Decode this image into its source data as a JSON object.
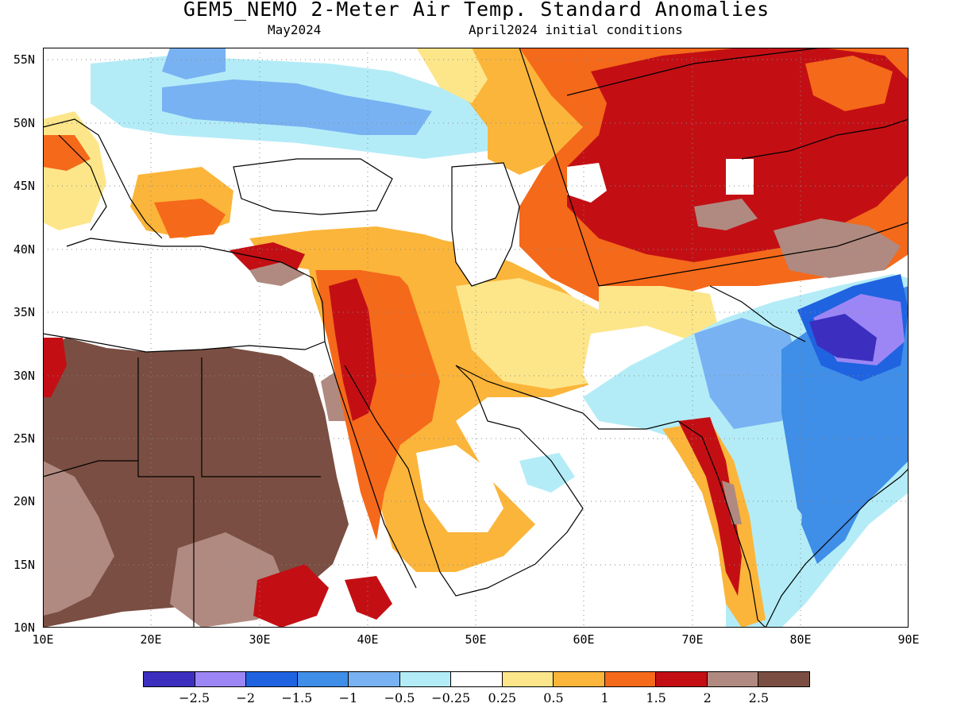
{
  "title": "GEM5_NEMO 2-Meter Air Temp. Standard Anomalies",
  "subtitle_left": "May2024",
  "subtitle_right": "April2024 initial conditions",
  "map": {
    "lon_range": [
      10,
      90
    ],
    "lat_range": [
      10,
      56
    ],
    "lat_labels": [
      "55N",
      "50N",
      "45N",
      "40N",
      "35N",
      "30N",
      "25N",
      "20N",
      "15N",
      "10N"
    ],
    "lon_labels": [
      "10E",
      "20E",
      "30E",
      "40E",
      "50E",
      "60E",
      "70E",
      "80E",
      "90E"
    ],
    "gridlines": "dotted"
  },
  "colorbar": {
    "colors": [
      "#3c2fbf",
      "#9c86f5",
      "#1f63e0",
      "#3f8ee8",
      "#78b2f2",
      "#b3ecf7",
      "#ffffff",
      "#fde68a",
      "#fbb53a",
      "#f5691a",
      "#c30f14",
      "#b08a80",
      "#7a4e42"
    ],
    "labels": [
      "−2.5",
      "−2",
      "−1.5",
      "−1",
      "−0.5",
      "−0.25",
      "0.25",
      "0.5",
      "1",
      "1.5",
      "2",
      "2.5"
    ]
  },
  "regions": [
    {
      "name": "sahara-strong-warm",
      "color": "#7a4e42"
    },
    {
      "name": "sahel-warm",
      "color": "#b08a80"
    },
    {
      "name": "arabia-warm",
      "color": "#fbb53a"
    },
    {
      "name": "central-asia-warm",
      "color": "#c30f14"
    },
    {
      "name": "tibet-cold",
      "color": "#3c2fbf"
    },
    {
      "name": "india-cold",
      "color": "#3f8ee8"
    }
  ]
}
